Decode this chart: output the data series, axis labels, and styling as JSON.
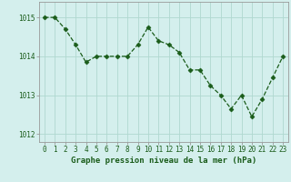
{
  "x": [
    0,
    1,
    2,
    3,
    4,
    5,
    6,
    7,
    8,
    9,
    10,
    11,
    12,
    13,
    14,
    15,
    16,
    17,
    18,
    19,
    20,
    21,
    22,
    23
  ],
  "y": [
    1015.0,
    1015.0,
    1014.7,
    1014.3,
    1013.85,
    1014.0,
    1014.0,
    1014.0,
    1014.0,
    1014.3,
    1014.75,
    1014.4,
    1014.3,
    1014.1,
    1013.65,
    1013.65,
    1013.25,
    1013.0,
    1012.65,
    1013.0,
    1012.45,
    1012.9,
    1013.45,
    1014.0
  ],
  "line_color": "#1a5c1a",
  "marker": "D",
  "marker_size": 2.5,
  "bg_color": "#d4efed",
  "grid_color": "#b0d8d0",
  "axis_color": "#999999",
  "xlabel": "Graphe pression niveau de la mer (hPa)",
  "xlabel_color": "#1a5c1a",
  "xlabel_fontsize": 6.5,
  "tick_color": "#1a5c1a",
  "tick_fontsize": 5.5,
  "ylim": [
    1011.8,
    1015.4
  ],
  "yticks": [
    1012,
    1013,
    1014,
    1015
  ],
  "xlim": [
    -0.5,
    23.5
  ],
  "xticks": [
    0,
    1,
    2,
    3,
    4,
    5,
    6,
    7,
    8,
    9,
    10,
    11,
    12,
    13,
    14,
    15,
    16,
    17,
    18,
    19,
    20,
    21,
    22,
    23
  ]
}
